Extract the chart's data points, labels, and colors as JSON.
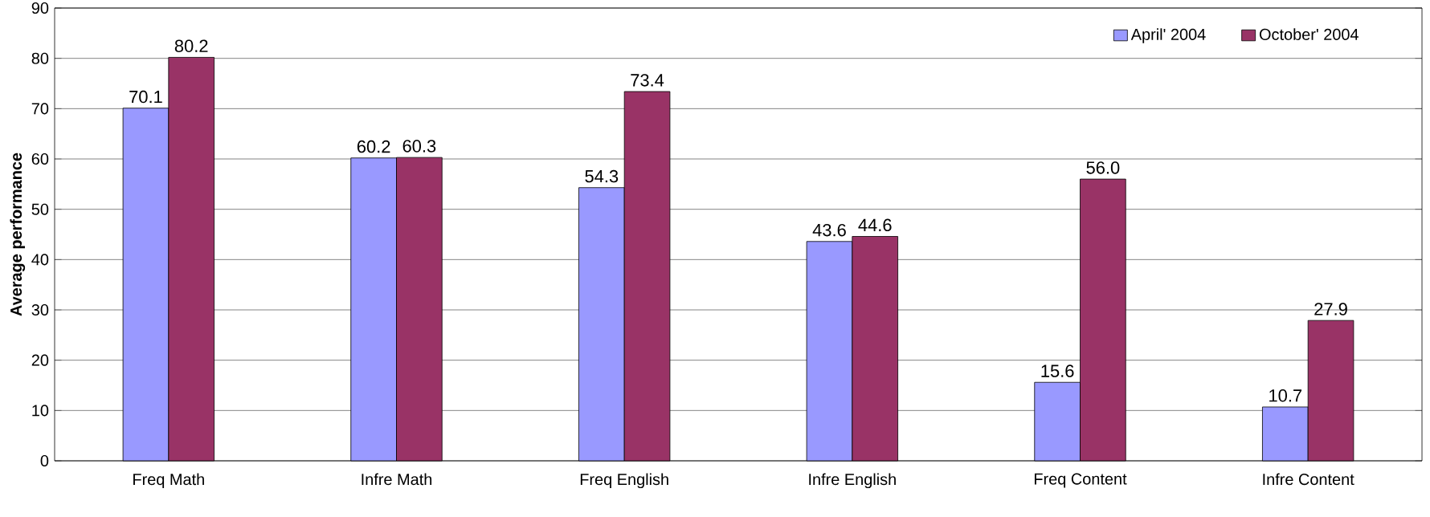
{
  "chart_data": {
    "type": "bar",
    "ylabel": "Average performance",
    "categories": [
      "Freq Math",
      "Infre Math",
      "Freq English",
      "Infre English",
      "Freq Content",
      "Infre Content"
    ],
    "series": [
      {
        "name": "April' 2004",
        "color": "#9999ff",
        "values": [
          70.1,
          60.2,
          54.3,
          43.6,
          15.6,
          10.7
        ],
        "value_labels": [
          "70.1",
          "60.2",
          "54.3",
          "43.6",
          "15.6",
          "10.7"
        ]
      },
      {
        "name": "October' 2004",
        "color": "#993366",
        "values": [
          80.2,
          60.3,
          73.4,
          44.6,
          56.0,
          27.9
        ],
        "value_labels": [
          "80.2",
          "60.3",
          "73.4",
          "44.6",
          "56.0",
          "27.9"
        ]
      }
    ],
    "ylim": [
      0,
      90
    ],
    "yticks": [
      0,
      10,
      20,
      30,
      40,
      50,
      60,
      70,
      80,
      90
    ],
    "grid": "y",
    "legend": "top right"
  }
}
